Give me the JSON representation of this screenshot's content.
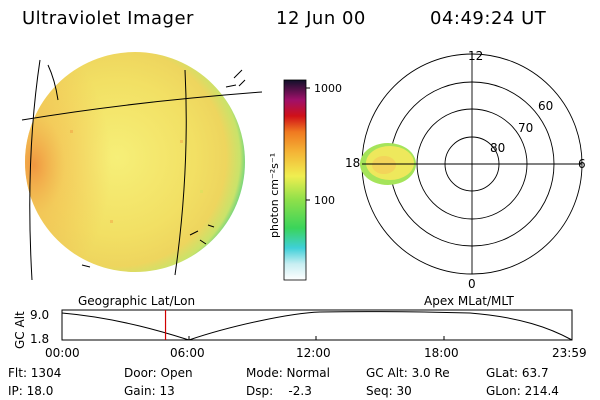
{
  "header": {
    "instrument": "Ultraviolet Imager",
    "date": "12 Jun 00",
    "time": "04:49:24 UT"
  },
  "colorbar": {
    "label": "photon cm⁻²s⁻¹",
    "tick_1000": "1000",
    "tick_100": "100"
  },
  "polar": {
    "mlt_12": "12",
    "mlt_18": "18",
    "mlt_6": "6",
    "mlt_0": "0",
    "lat_60": "60",
    "lat_70": "70",
    "lat_80": "80"
  },
  "labels": {
    "geographic": "Geographic Lat/Lon",
    "apex": "Apex MLat/MLT"
  },
  "altitude_plot": {
    "ylabel": "GC Alt",
    "ytick_high": "9.0",
    "ytick_low": "1.8",
    "xticks": [
      "00:00",
      "06:00",
      "12:00",
      "18:00",
      "23:59"
    ],
    "current_time_fraction": 0.203
  },
  "status": {
    "row1": {
      "flt": "Flt: 1304",
      "door": "Door: Open",
      "mode": "Mode: Normal",
      "gcalt": "GC Alt: 3.0 Re",
      "glat": "GLat:  63.7"
    },
    "row2": {
      "ip": "IP: 18.0",
      "gain": "Gain: 13",
      "dsp": "Dsp:    -2.3",
      "seq": "Seq: 30",
      "glon": "GLon: 214.4"
    }
  },
  "colors": {
    "disk_main": "#f3e86a",
    "disk_edge": "#8fdc6e",
    "marker": "#d00000"
  }
}
